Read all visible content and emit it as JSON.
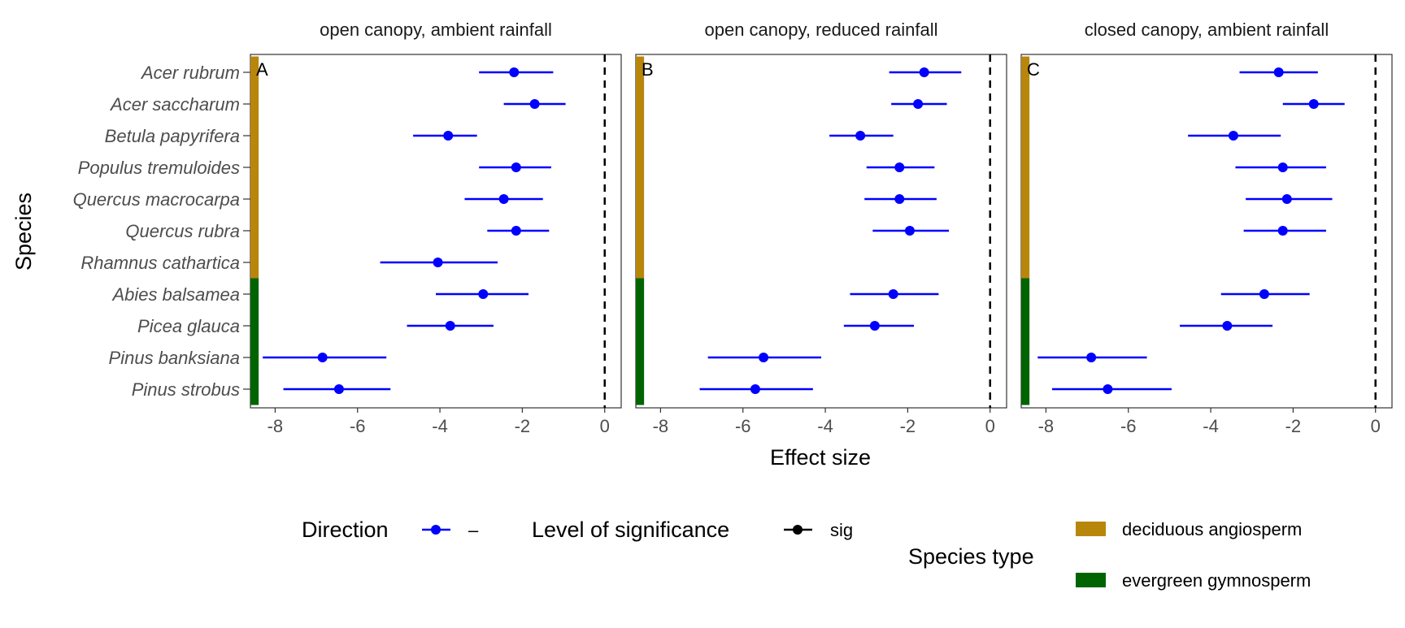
{
  "chart_data": {
    "type": "forest",
    "ylabel": "Species",
    "xlabel": "Effect size",
    "xlim": [
      -8.6,
      0.4
    ],
    "x_ticks": [
      -8,
      -6,
      -4,
      -2,
      0
    ],
    "x_tick_labels": [
      "-8",
      "-6",
      "-4",
      "-2",
      "0"
    ],
    "reference_line": 0,
    "species": [
      "Acer rubrum",
      "Acer saccharum",
      "Betula papyrifera",
      "Populus tremuloides",
      "Quercus macrocarpa",
      "Quercus rubra",
      "Rhamnus cathartica",
      "Abies balsamea",
      "Picea glauca",
      "Pinus banksiana",
      "Pinus strobus"
    ],
    "species_type": [
      "deciduous angiosperm",
      "deciduous angiosperm",
      "deciduous angiosperm",
      "deciduous angiosperm",
      "deciduous angiosperm",
      "deciduous angiosperm",
      "deciduous angiosperm",
      "evergreen gymnosperm",
      "evergreen gymnosperm",
      "evergreen gymnosperm",
      "evergreen gymnosperm"
    ],
    "panels": [
      {
        "title": "open canopy, ambient rainfall",
        "tag": "A",
        "estimate": [
          -2.2,
          -1.7,
          -3.8,
          -2.15,
          -2.45,
          -2.15,
          -4.05,
          -2.95,
          -3.75,
          -6.85,
          -6.45
        ],
        "lower": [
          -3.05,
          -2.45,
          -4.65,
          -3.05,
          -3.4,
          -2.85,
          -5.45,
          -4.1,
          -4.8,
          -8.3,
          -7.8
        ],
        "upper": [
          -1.25,
          -0.95,
          -3.1,
          -1.3,
          -1.5,
          -1.35,
          -2.6,
          -1.85,
          -2.7,
          -5.3,
          -5.2
        ]
      },
      {
        "title": "open canopy, reduced rainfall",
        "tag": "B",
        "estimate": [
          -1.6,
          -1.75,
          -3.15,
          -2.2,
          -2.2,
          -1.95,
          null,
          -2.35,
          -2.8,
          -5.5,
          -5.7
        ],
        "lower": [
          -2.45,
          -2.4,
          -3.9,
          -3.0,
          -3.05,
          -2.85,
          null,
          -3.4,
          -3.55,
          -6.85,
          -7.05
        ],
        "upper": [
          -0.7,
          -1.05,
          -2.35,
          -1.35,
          -1.3,
          -1.0,
          null,
          -1.25,
          -1.85,
          -4.1,
          -4.3
        ]
      },
      {
        "title": "closed canopy, ambient rainfall",
        "tag": "C",
        "estimate": [
          -2.35,
          -1.5,
          -3.45,
          -2.25,
          -2.15,
          -2.25,
          null,
          -2.7,
          -3.6,
          -6.9,
          -6.5
        ],
        "lower": [
          -3.3,
          -2.25,
          -4.55,
          -3.4,
          -3.15,
          -3.2,
          null,
          -3.75,
          -4.75,
          -8.2,
          -7.85
        ],
        "upper": [
          -1.4,
          -0.75,
          -2.3,
          -1.2,
          -1.05,
          -1.2,
          null,
          -1.6,
          -2.5,
          -5.55,
          -4.95
        ]
      }
    ],
    "point_color": "#0000ff",
    "legend": {
      "direction": {
        "title": "Direction",
        "items": [
          {
            "label": "–",
            "color": "#0000ff"
          }
        ]
      },
      "significance": {
        "title": "Level of significance",
        "items": [
          {
            "label": "sig",
            "color": "#000000"
          }
        ]
      },
      "species_type": {
        "title": "Species type",
        "items": [
          {
            "label": "deciduous angiosperm",
            "color": "#b8860b"
          },
          {
            "label": "evergreen gymnosperm",
            "color": "#006400"
          }
        ]
      },
      "position": "bottom"
    }
  }
}
